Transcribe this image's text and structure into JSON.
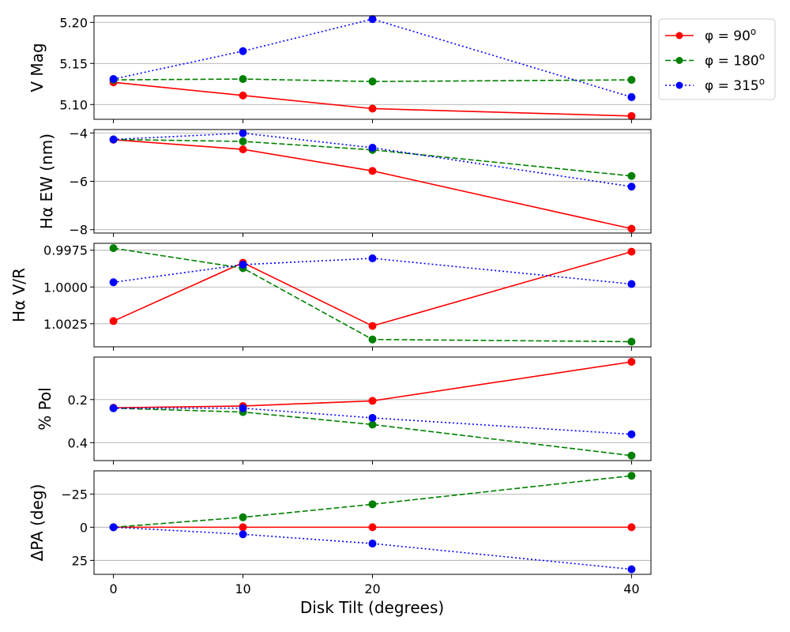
{
  "chart_data": {
    "type": "line",
    "x": [
      0,
      10,
      20,
      40
    ],
    "xlabel": "Disk Tilt (degrees)",
    "xlim": [
      -1.5,
      41.5
    ],
    "xticks": [
      0,
      10,
      20,
      40
    ],
    "xtick_labels": [
      "0",
      "10",
      "20",
      "40"
    ],
    "legend": {
      "placement": "upper-right-outside",
      "entries": [
        {
          "label_prefix": "φ = 90",
          "label_sup": "o",
          "color": "#ff0000",
          "style": "solid"
        },
        {
          "label_prefix": "φ = 180",
          "label_sup": "o",
          "color": "#008000",
          "style": "dashed"
        },
        {
          "label_prefix": "φ = 315",
          "label_sup": "o",
          "color": "#0000ff",
          "style": "dotted"
        }
      ]
    },
    "panels": [
      {
        "ylabel": "V Mag",
        "ylim": [
          5.208,
          5.082
        ],
        "yticks": [
          5.1,
          5.15,
          5.2
        ],
        "ytick_labels": [
          "5.10",
          "5.15",
          "5.20"
        ],
        "grid": true,
        "series": [
          {
            "name": "φ = 90°",
            "values": [
              5.127,
              5.111,
              5.095,
              5.086
            ]
          },
          {
            "name": "φ = 180°",
            "values": [
              5.13,
              5.131,
              5.128,
              5.13
            ]
          },
          {
            "name": "φ = 315°",
            "values": [
              5.131,
              5.165,
              5.204,
              5.109
            ]
          }
        ]
      },
      {
        "ylabel": "Hα EW (nm)",
        "ylim": [
          -3.86,
          -8.14
        ],
        "yticks": [
          -8,
          -6,
          -4
        ],
        "ytick_labels": [
          "−8",
          "−6",
          "−4"
        ],
        "grid": true,
        "series": [
          {
            "name": "φ = 90°",
            "values": [
              -4.28,
              -4.68,
              -5.57,
              -7.96
            ]
          },
          {
            "name": "φ = 180°",
            "values": [
              -4.27,
              -4.35,
              -4.7,
              -5.78
            ]
          },
          {
            "name": "φ = 315°",
            "values": [
              -4.27,
              -4.01,
              -4.61,
              -6.22
            ]
          }
        ]
      },
      {
        "ylabel": "Hα V/R",
        "ylim": [
          0.99703,
          1.00407
        ],
        "yticks": [
          0.9975,
          1.0,
          1.0025
        ],
        "ytick_labels": [
          "0.9975",
          "1.0000",
          "1.0025"
        ],
        "grid": true,
        "series": [
          {
            "name": "φ = 90°",
            "values": [
              1.00232,
              0.99835,
              1.00265,
              0.9976
            ]
          },
          {
            "name": "φ = 180°",
            "values": [
              0.99736,
              0.99872,
              1.00357,
              1.00372
            ]
          },
          {
            "name": "φ = 315°",
            "values": [
              0.99968,
              0.99848,
              0.99805,
              0.9998
            ]
          }
        ]
      },
      {
        "ylabel": "% Pol",
        "ylim": [
          0.003,
          0.483
        ],
        "yticks": [
          0.2,
          0.4
        ],
        "ytick_labels": [
          "0.2",
          "0.4"
        ],
        "grid": true,
        "series": [
          {
            "name": "φ = 90°",
            "values": [
              0.238,
              0.23,
              0.206,
              0.025
            ]
          },
          {
            "name": "φ = 180°",
            "values": [
              0.24,
              0.258,
              0.316,
              0.46
            ]
          },
          {
            "name": "φ = 315°",
            "values": [
              0.24,
              0.24,
              0.285,
              0.361
            ]
          }
        ]
      },
      {
        "ylabel": "ΔPA (deg)",
        "ylim": [
          -42.5,
          35.5
        ],
        "yticks": [
          -25,
          0,
          25
        ],
        "ytick_labels": [
          "−25",
          "0",
          "25"
        ],
        "grid": true,
        "series": [
          {
            "name": "φ = 90°",
            "values": [
              0,
              0,
              0,
              0
            ]
          },
          {
            "name": "φ = 180°",
            "values": [
              0,
              -7.5,
              -17.3,
              -38.8
            ]
          },
          {
            "name": "φ = 315°",
            "values": [
              0,
              5.3,
              12.3,
              31.7
            ]
          }
        ]
      }
    ]
  }
}
